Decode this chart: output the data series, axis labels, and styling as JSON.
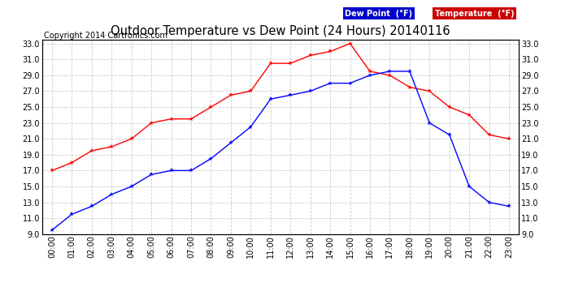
{
  "title": "Outdoor Temperature vs Dew Point (24 Hours) 20140116",
  "copyright": "Copyright 2014 Cartronics.com",
  "hours": [
    "00:00",
    "01:00",
    "02:00",
    "03:00",
    "04:00",
    "05:00",
    "06:00",
    "07:00",
    "08:00",
    "09:00",
    "10:00",
    "11:00",
    "12:00",
    "13:00",
    "14:00",
    "15:00",
    "16:00",
    "17:00",
    "18:00",
    "19:00",
    "20:00",
    "21:00",
    "22:00",
    "23:00"
  ],
  "temperature": [
    17.0,
    18.0,
    19.5,
    20.0,
    21.0,
    23.0,
    23.5,
    23.5,
    25.0,
    26.5,
    27.0,
    30.5,
    30.5,
    31.5,
    32.0,
    33.0,
    29.5,
    29.0,
    27.5,
    27.0,
    25.0,
    24.0,
    21.5,
    21.0
  ],
  "dew_point": [
    9.5,
    11.5,
    12.5,
    14.0,
    15.0,
    16.5,
    17.0,
    17.0,
    18.5,
    20.5,
    22.5,
    26.0,
    26.5,
    27.0,
    28.0,
    28.0,
    29.0,
    29.5,
    29.5,
    23.0,
    21.5,
    15.0,
    13.0,
    12.5
  ],
  "temp_color": "#ff0000",
  "dew_color": "#0000ff",
  "ylim": [
    9.0,
    33.5
  ],
  "yticks": [
    9.0,
    11.0,
    13.0,
    15.0,
    17.0,
    19.0,
    21.0,
    23.0,
    25.0,
    27.0,
    29.0,
    31.0,
    33.0
  ],
  "bg_color": "#ffffff",
  "grid_color": "#cccccc",
  "legend_dew_bg": "#0000cc",
  "legend_temp_bg": "#cc0000",
  "legend_text_color": "#ffffff",
  "title_fontsize": 10.5,
  "tick_fontsize": 7,
  "copyright_fontsize": 7
}
